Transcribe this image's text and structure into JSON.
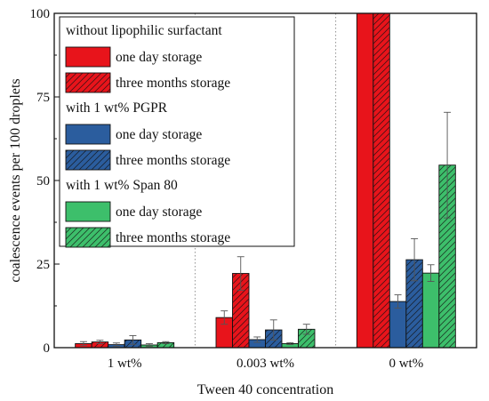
{
  "chart_data": {
    "type": "bar",
    "xlabel": "Tween 40 concentration",
    "ylabel": "coalescence events per 100 droplets",
    "ylim": [
      0,
      100
    ],
    "yticks": [
      0,
      25,
      50,
      75,
      100
    ],
    "categories": [
      "1 wt%",
      "0.003 wt%",
      "0 wt%"
    ],
    "grid": false,
    "legend_position": "top-left",
    "legend_groups": [
      "without lipophilic surfactant",
      "with 1 wt% PGPR",
      "with 1 wt% Span 80"
    ],
    "series": [
      {
        "name": "one day storage",
        "group": "without lipophilic surfactant",
        "color": "#e8141b",
        "hatched": false,
        "values": [
          1.2,
          9.0,
          100
        ],
        "errors": [
          0.6,
          2.0,
          0
        ]
      },
      {
        "name": "three months storage",
        "group": "without lipophilic surfactant",
        "color": "#e8141b",
        "hatched": true,
        "values": [
          1.7,
          22.2,
          100
        ],
        "errors": [
          0.5,
          5.0,
          0
        ]
      },
      {
        "name": "one day storage",
        "group": "with 1 wt% PGPR",
        "color": "#2b5d9e",
        "hatched": false,
        "values": [
          0.9,
          2.4,
          13.8
        ],
        "errors": [
          0.5,
          0.8,
          2.0
        ]
      },
      {
        "name": "three months storage",
        "group": "with 1 wt% PGPR",
        "color": "#2b5d9e",
        "hatched": true,
        "values": [
          2.3,
          5.3,
          26.3
        ],
        "errors": [
          1.3,
          3.0,
          6.3
        ]
      },
      {
        "name": "one day storage",
        "group": "with 1 wt% Span 80",
        "color": "#3dbf6b",
        "hatched": false,
        "values": [
          0.8,
          1.2,
          22.3
        ],
        "errors": [
          0.4,
          0.3,
          2.5
        ]
      },
      {
        "name": "three months storage",
        "group": "with 1 wt% Span 80",
        "color": "#3dbf6b",
        "hatched": true,
        "values": [
          1.5,
          5.5,
          54.6
        ],
        "errors": [
          0.3,
          1.5,
          15.8
        ]
      }
    ]
  }
}
